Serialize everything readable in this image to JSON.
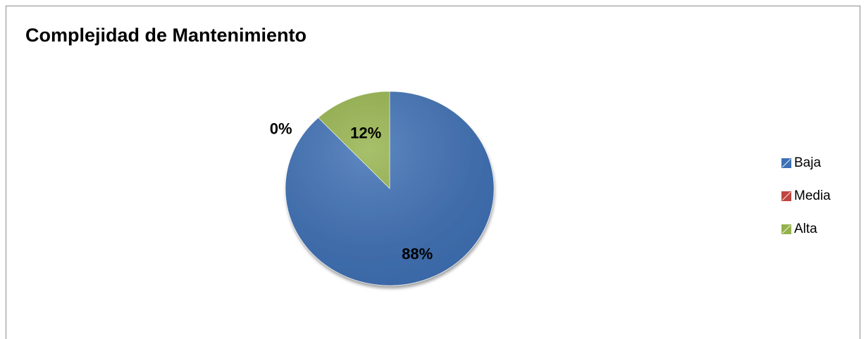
{
  "chart_data": {
    "type": "pie",
    "title": "Complejidad de Mantenimiento",
    "categories": [
      "Baja",
      "Media",
      "Alta"
    ],
    "values": [
      88,
      0,
      12
    ],
    "labels": [
      "88%",
      "0%",
      "12%"
    ],
    "colors": [
      "#3d6fb4",
      "#bf4440",
      "#94b24a"
    ],
    "legend_position": "right"
  }
}
